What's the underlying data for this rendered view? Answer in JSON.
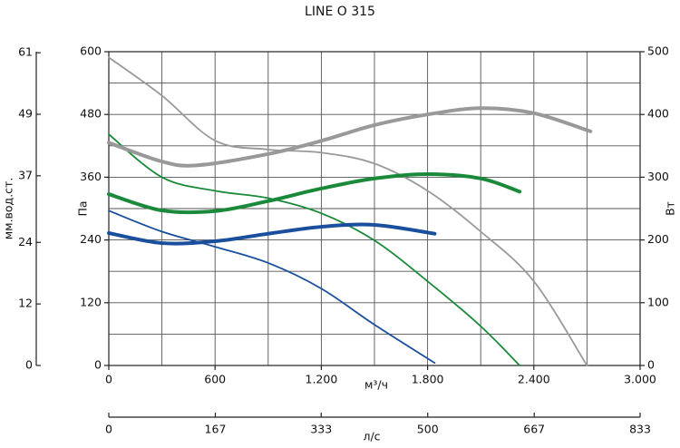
{
  "chart_data": {
    "type": "line",
    "title": "LINE O 315",
    "x_label": "м³/ч",
    "y_label": "Па",
    "y2_label": "Вт",
    "y3_label": "мм.вод.ст.",
    "x2_label": "л/с",
    "xlim": [
      0,
      3000
    ],
    "xticks": [
      0,
      {
        "value": 600,
        "label": "600"
      },
      {
        "value": 1200,
        "label": "1.200"
      },
      {
        "value": 1800,
        "label": "1.800"
      },
      {
        "value": 2400,
        "label": "2.400"
      },
      {
        "value": 3000,
        "label": "3.000"
      }
    ],
    "xgrid_minor": [
      300,
      900,
      1500,
      2100,
      2700
    ],
    "ylim": [
      0,
      600
    ],
    "yticks": [
      0,
      120,
      240,
      360,
      480,
      600
    ],
    "ygrid_minor": [
      60,
      180,
      300,
      420,
      540
    ],
    "y2lim": [
      0,
      500
    ],
    "y2ticks": [
      0,
      100,
      200,
      300,
      400,
      500
    ],
    "y3lim": [
      0,
      61.2
    ],
    "y3ticks": [
      0,
      12,
      24,
      37,
      49,
      61
    ],
    "x2lim": [
      0,
      833
    ],
    "x2ticks": [
      0,
      167,
      333,
      500,
      667,
      833
    ],
    "grid": true,
    "series": [
      {
        "color": "#999999",
        "x": [
          0,
          300,
          600,
          900,
          1200,
          1500,
          1800,
          2100,
          2400,
          2700
        ],
        "values": [
          589,
          516,
          430,
          413,
          407,
          386,
          334,
          256,
          161,
          0
        ]
      },
      {
        "color": "#1a8a3a",
        "x": [
          0,
          300,
          600,
          900,
          1200,
          1500,
          1800,
          2100,
          2320
        ],
        "values": [
          442,
          360,
          334,
          320,
          291,
          239,
          161,
          75,
          0
        ]
      },
      {
        "color": "#1a4f9e",
        "x": [
          0,
          300,
          600,
          900,
          1200,
          1500,
          1840
        ],
        "values": [
          296,
          256,
          227,
          196,
          147,
          78,
          5
        ]
      },
      {
        "color": "#999999",
        "axis": "y2",
        "x": [
          0,
          300,
          500,
          900,
          1200,
          1500,
          1800,
          2100,
          2400,
          2720
        ],
        "values": [
          355,
          325,
          319,
          337,
          358,
          383,
          400,
          410,
          402,
          373
        ]
      },
      {
        "color": "#1a8a3a",
        "axis": "y2",
        "x": [
          0,
          300,
          600,
          900,
          1200,
          1500,
          1800,
          2100,
          2320
        ],
        "values": [
          273,
          247,
          246,
          262,
          282,
          298,
          305,
          298,
          277
        ]
      },
      {
        "color": "#1a4f9e",
        "axis": "y2",
        "x": [
          0,
          300,
          600,
          900,
          1200,
          1500,
          1840
        ],
        "values": [
          211,
          195,
          198,
          210,
          221,
          224,
          210
        ]
      }
    ]
  }
}
